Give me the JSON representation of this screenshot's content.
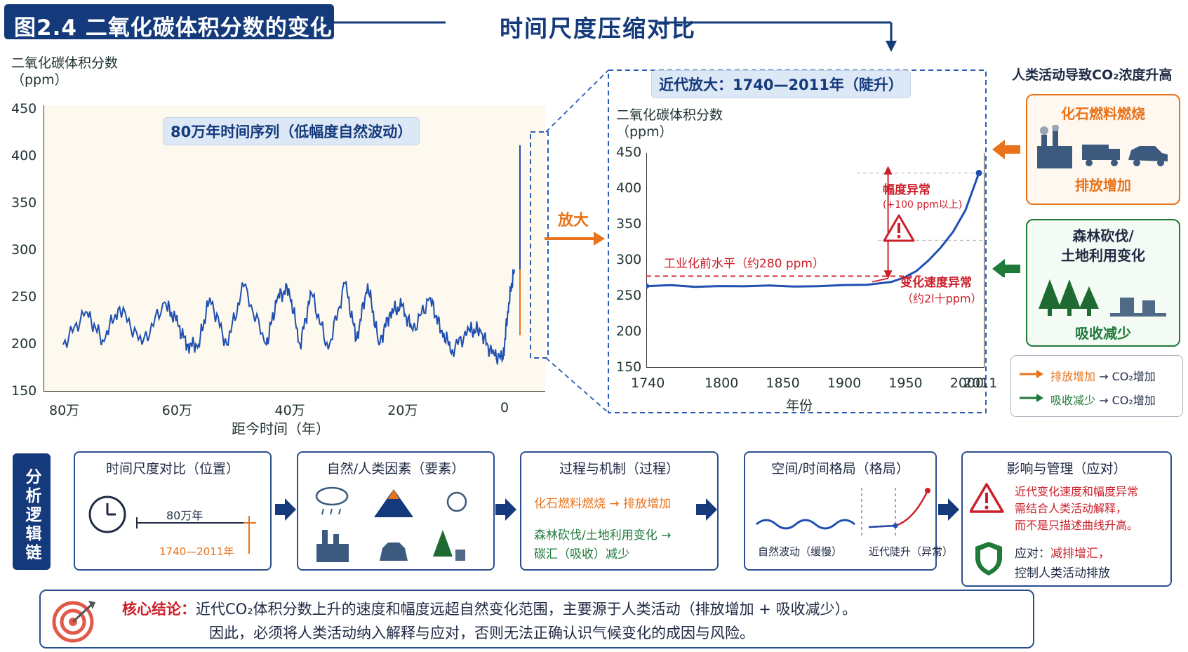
{
  "header": {
    "figure_title": "图2.4  二氧化碳体积分数的变化",
    "center_title": "时间尺度压缩对比"
  },
  "left_chart": {
    "y_title_line1": "二氧化碳体积分数",
    "y_title_line2": "（ppm）",
    "series_label": "80万年时间序列（低幅度自然波动）",
    "y_ticks": [
      "450",
      "400",
      "350",
      "300",
      "250",
      "200",
      "150"
    ],
    "x_ticks": [
      "80万",
      "60万",
      "40万",
      "20万",
      "0"
    ],
    "x_title": "距今时间（年）",
    "zoom_label": "放大"
  },
  "right_chart": {
    "header_label": "近代放大：1740—2011年（陡升）",
    "y_title_line1": "二氧化碳体积分数",
    "y_title_line2": "（ppm）",
    "y_ticks": [
      "450",
      "400",
      "350",
      "300",
      "250",
      "200",
      "150"
    ],
    "x_ticks": [
      "1740",
      "1800",
      "1850",
      "1900",
      "1950",
      "2000",
      "2011"
    ],
    "x_title": "年份",
    "preindustrial_label": "工业化前水平（约280 ppm）",
    "amplitude_label": "幅度异常",
    "amplitude_sub": "(+100 ppm以上)",
    "speed_label": "变化速度异常",
    "speed_sub": "（约2l十ppm）"
  },
  "chart_data": [
    {
      "type": "line",
      "title": "80万年时间序列（低幅度自然波动）",
      "xlabel": "距今时间（年）",
      "ylabel": "二氧化碳体积分数（ppm）",
      "ylim": [
        150,
        450
      ],
      "x_unit": "years before present",
      "x": [
        800000,
        760000,
        730000,
        700000,
        660000,
        620000,
        600000,
        580000,
        560000,
        540000,
        510000,
        480000,
        440000,
        420000,
        400000,
        380000,
        360000,
        330000,
        300000,
        280000,
        260000,
        240000,
        220000,
        200000,
        180000,
        150000,
        130000,
        110000,
        80000,
        60000,
        40000,
        20000,
        10000,
        0
      ],
      "y": [
        200,
        235,
        205,
        240,
        200,
        245,
        225,
        200,
        200,
        250,
        200,
        262,
        200,
        250,
        260,
        200,
        255,
        195,
        265,
        205,
        265,
        200,
        235,
        240,
        215,
        250,
        215,
        195,
        215,
        215,
        190,
        185,
        245,
        280
      ],
      "x_ticks": [
        "80万",
        "60万",
        "40万",
        "20万",
        "0"
      ]
    },
    {
      "type": "line",
      "title": "近代放大：1740—2011年（陡升）",
      "xlabel": "年份",
      "ylabel": "二氧化碳体积分数（ppm）",
      "ylim": [
        150,
        450
      ],
      "xlim": [
        1740,
        2011
      ],
      "x": [
        1740,
        1760,
        1780,
        1800,
        1820,
        1840,
        1860,
        1880,
        1900,
        1920,
        1940,
        1950,
        1960,
        1970,
        1980,
        1990,
        2000,
        2011
      ],
      "y": [
        264,
        265,
        264,
        263,
        265,
        264,
        264,
        264,
        265,
        266,
        270,
        276,
        285,
        300,
        318,
        340,
        370,
        422
      ],
      "reference_line": 278
    }
  ],
  "human_panel": {
    "title": "人类活动导致CO₂浓度升高",
    "fossil_title": "化石燃料燃烧",
    "fossil_result": "排放增加",
    "forest_title_1": "森林砍伐/",
    "forest_title_2": "土地利用变化",
    "forest_result": "吸收减少",
    "legend_1a": "排放增加",
    "legend_1b": "→ CO₂增加",
    "legend_2a": "吸收减少",
    "legend_2b": "→ CO₂增加"
  },
  "chain": {
    "side_label": "分析逻辑链",
    "box1_title": "时间尺度对比（位置）",
    "box1_top": "80万年",
    "box1_bottom": "1740—2011年",
    "box2_title": "自然/人类因素（要素）",
    "box3_title": "过程与机制（过程）",
    "box3_line1": "化石燃料燃烧 → 排放增加",
    "box3_line2": "森林砍伐/土地利用变化 →",
    "box3_line3": "碳汇（吸收）减少",
    "box4_title": "空间/时间格局（格局）",
    "box4_left": "自然波动（缓慢）",
    "box4_right": "近代陡升（异常）",
    "box5_title": "影响与管理（应对）",
    "box5_warn1": "近代变化速度和幅度异常",
    "box5_warn2": "需结合人类活动解释，",
    "box5_warn3": "而不是只描述曲线升高。",
    "box5_act_label": "应对：",
    "box5_act_red": "减排增汇，",
    "box5_act2": "控制人类活动排放"
  },
  "conclusion": {
    "label": "核心结论：",
    "line1": "近代CO₂体积分数上升的速度和幅度远超自然变化范围，主要源于人类活动（排放增加 + 吸收减少）。",
    "line2": "因此，必须将人类活动纳入解释与应对，否则无法正确认识气候变化的成因与风险。"
  },
  "colors": {
    "navy": "#143a7b",
    "orange": "#e8731a",
    "green": "#1f7a3a",
    "red": "#cc1f2a",
    "line": "#1f4fb0"
  }
}
